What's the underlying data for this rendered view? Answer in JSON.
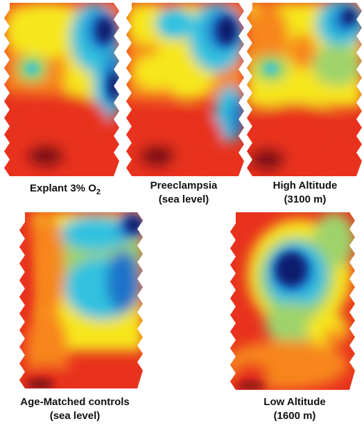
{
  "panels": [
    {
      "caption_line1_main": "Explant 3% O",
      "caption_line1_sub": "2",
      "caption_line2": ""
    },
    {
      "caption_line1": "Preeclampsia",
      "caption_line2": "(sea level)"
    },
    {
      "caption_line1": "High Altitude",
      "caption_line2": "(3100 m)"
    },
    {
      "caption_line1": "Age-Matched controls",
      "caption_line2": "(sea level)"
    },
    {
      "caption_line1": "Low Altitude",
      "caption_line2": "(1600 m)"
    }
  ],
  "colors": {
    "darkred": "#7a0a14",
    "red": "#e8321e",
    "orange": "#f7861f",
    "yellow": "#f6e61e",
    "green": "#9fd36a",
    "cyan": "#30c2e0",
    "blue": "#1a73c9",
    "navy": "#0c1f6e"
  }
}
